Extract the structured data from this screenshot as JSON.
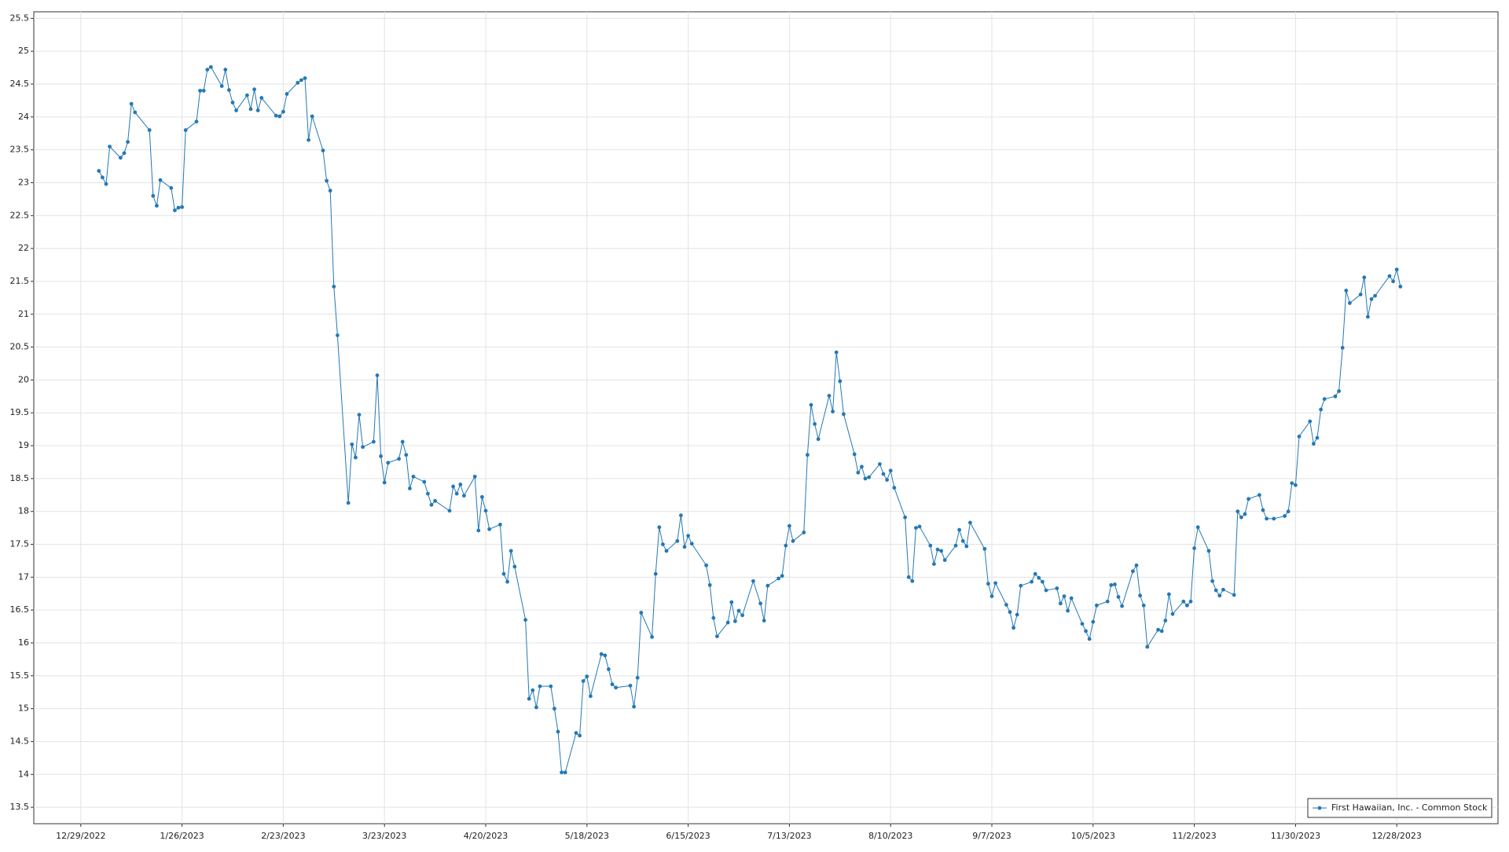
{
  "chart_data": {
    "type": "line",
    "x": [
      "1/3/2023",
      "1/4/2023",
      "1/5/2023",
      "1/6/2023",
      "1/9/2023",
      "1/10/2023",
      "1/11/2023",
      "1/12/2023",
      "1/13/2023",
      "1/17/2023",
      "1/18/2023",
      "1/19/2023",
      "1/20/2023",
      "1/23/2023",
      "1/24/2023",
      "1/25/2023",
      "1/26/2023",
      "1/27/2023",
      "1/30/2023",
      "1/31/2023",
      "2/1/2023",
      "2/2/2023",
      "2/3/2023",
      "2/6/2023",
      "2/7/2023",
      "2/8/2023",
      "2/9/2023",
      "2/10/2023",
      "2/13/2023",
      "2/14/2023",
      "2/15/2023",
      "2/16/2023",
      "2/17/2023",
      "2/21/2023",
      "2/22/2023",
      "2/23/2023",
      "2/24/2023",
      "2/27/2023",
      "2/28/2023",
      "3/1/2023",
      "3/2/2023",
      "3/3/2023",
      "3/6/2023",
      "3/7/2023",
      "3/8/2023",
      "3/9/2023",
      "3/10/2023",
      "3/13/2023",
      "3/14/2023",
      "3/15/2023",
      "3/16/2023",
      "3/17/2023",
      "3/20/2023",
      "3/21/2023",
      "3/22/2023",
      "3/23/2023",
      "3/24/2023",
      "3/27/2023",
      "3/28/2023",
      "3/29/2023",
      "3/30/2023",
      "3/31/2023",
      "4/3/2023",
      "4/4/2023",
      "4/5/2023",
      "4/6/2023",
      "4/10/2023",
      "4/11/2023",
      "4/12/2023",
      "4/13/2023",
      "4/14/2023",
      "4/17/2023",
      "4/18/2023",
      "4/19/2023",
      "4/20/2023",
      "4/21/2023",
      "4/24/2023",
      "4/25/2023",
      "4/26/2023",
      "4/27/2023",
      "4/28/2023",
      "5/1/2023",
      "5/2/2023",
      "5/3/2023",
      "5/4/2023",
      "5/5/2023",
      "5/8/2023",
      "5/9/2023",
      "5/10/2023",
      "5/11/2023",
      "5/12/2023",
      "5/15/2023",
      "5/16/2023",
      "5/17/2023",
      "5/18/2023",
      "5/19/2023",
      "5/22/2023",
      "5/23/2023",
      "5/24/2023",
      "5/25/2023",
      "5/26/2023",
      "5/30/2023",
      "5/31/2023",
      "6/1/2023",
      "6/2/2023",
      "6/5/2023",
      "6/6/2023",
      "6/7/2023",
      "6/8/2023",
      "6/9/2023",
      "6/12/2023",
      "6/13/2023",
      "6/14/2023",
      "6/15/2023",
      "6/16/2023",
      "6/20/2023",
      "6/21/2023",
      "6/22/2023",
      "6/23/2023",
      "6/26/2023",
      "6/27/2023",
      "6/28/2023",
      "6/29/2023",
      "6/30/2023",
      "7/3/2023",
      "7/5/2023",
      "7/6/2023",
      "7/7/2023",
      "7/10/2023",
      "7/11/2023",
      "7/12/2023",
      "7/13/2023",
      "7/14/2023",
      "7/17/2023",
      "7/18/2023",
      "7/19/2023",
      "7/20/2023",
      "7/21/2023",
      "7/24/2023",
      "7/25/2023",
      "7/26/2023",
      "7/27/2023",
      "7/28/2023",
      "7/31/2023",
      "8/1/2023",
      "8/2/2023",
      "8/3/2023",
      "8/4/2023",
      "8/7/2023",
      "8/8/2023",
      "8/9/2023",
      "8/10/2023",
      "8/11/2023",
      "8/14/2023",
      "8/15/2023",
      "8/16/2023",
      "8/17/2023",
      "8/18/2023",
      "8/21/2023",
      "8/22/2023",
      "8/23/2023",
      "8/24/2023",
      "8/25/2023",
      "8/28/2023",
      "8/29/2023",
      "8/30/2023",
      "8/31/2023",
      "9/1/2023",
      "9/5/2023",
      "9/6/2023",
      "9/7/2023",
      "9/8/2023",
      "9/11/2023",
      "9/12/2023",
      "9/13/2023",
      "9/14/2023",
      "9/15/2023",
      "9/18/2023",
      "9/19/2023",
      "9/20/2023",
      "9/21/2023",
      "9/22/2023",
      "9/25/2023",
      "9/26/2023",
      "9/27/2023",
      "9/28/2023",
      "9/29/2023",
      "10/2/2023",
      "10/3/2023",
      "10/4/2023",
      "10/5/2023",
      "10/6/2023",
      "10/9/2023",
      "10/10/2023",
      "10/11/2023",
      "10/12/2023",
      "10/13/2023",
      "10/16/2023",
      "10/17/2023",
      "10/18/2023",
      "10/19/2023",
      "10/20/2023",
      "10/23/2023",
      "10/24/2023",
      "10/25/2023",
      "10/26/2023",
      "10/27/2023",
      "10/30/2023",
      "10/31/2023",
      "11/1/2023",
      "11/2/2023",
      "11/3/2023",
      "11/6/2023",
      "11/7/2023",
      "11/8/2023",
      "11/9/2023",
      "11/10/2023",
      "11/13/2023",
      "11/14/2023",
      "11/15/2023",
      "11/16/2023",
      "11/17/2023",
      "11/20/2023",
      "11/21/2023",
      "11/22/2023",
      "11/24/2023",
      "11/27/2023",
      "11/28/2023",
      "11/29/2023",
      "11/30/2023",
      "12/1/2023",
      "12/4/2023",
      "12/5/2023",
      "12/6/2023",
      "12/7/2023",
      "12/8/2023",
      "12/11/2023",
      "12/12/2023",
      "12/13/2023",
      "12/14/2023",
      "12/15/2023",
      "12/18/2023",
      "12/19/2023",
      "12/20/2023",
      "12/21/2023",
      "12/22/2023",
      "12/26/2023",
      "12/27/2023",
      "12/28/2023",
      "12/29/2023"
    ],
    "series": [
      {
        "name": "First Hawaiian, Inc. - Common Stock",
        "color": "#2478b5",
        "values": [
          23.18,
          23.08,
          22.98,
          23.55,
          23.38,
          23.45,
          23.62,
          24.2,
          24.07,
          23.8,
          22.8,
          22.65,
          23.04,
          22.92,
          22.58,
          22.62,
          22.63,
          23.8,
          23.93,
          24.4,
          24.4,
          24.72,
          24.76,
          24.47,
          24.72,
          24.41,
          24.22,
          24.1,
          24.33,
          24.12,
          24.42,
          24.1,
          24.29,
          24.02,
          24.01,
          24.08,
          24.35,
          24.52,
          24.56,
          24.59,
          23.65,
          24.01,
          23.49,
          23.03,
          22.88,
          21.42,
          20.68,
          18.13,
          19.02,
          18.82,
          19.47,
          18.98,
          19.06,
          20.07,
          18.84,
          18.44,
          18.74,
          18.8,
          19.06,
          18.86,
          18.35,
          18.53,
          18.45,
          18.27,
          18.1,
          18.16,
          18.01,
          18.38,
          18.27,
          18.41,
          18.24,
          18.53,
          17.71,
          18.22,
          18.01,
          17.73,
          17.8,
          17.05,
          16.93,
          17.4,
          17.16,
          16.35,
          15.15,
          15.28,
          15.02,
          15.34,
          15.34,
          15.0,
          14.65,
          14.03,
          14.03,
          14.63,
          14.59,
          15.42,
          15.49,
          15.19,
          15.83,
          15.81,
          15.6,
          15.37,
          15.32,
          15.35,
          15.03,
          15.47,
          16.46,
          16.09,
          17.05,
          17.76,
          17.5,
          17.4,
          17.55,
          17.94,
          17.46,
          17.63,
          17.51,
          17.18,
          16.88,
          16.38,
          16.1,
          16.31,
          16.62,
          16.33,
          16.49,
          16.42,
          16.94,
          16.6,
          16.34,
          16.87,
          16.98,
          17.02,
          17.48,
          17.78,
          17.55,
          17.68,
          18.86,
          19.62,
          19.33,
          19.1,
          19.76,
          19.52,
          20.42,
          19.98,
          19.48,
          18.87,
          18.59,
          18.68,
          18.5,
          18.52,
          18.72,
          18.57,
          18.48,
          18.62,
          18.36,
          17.91,
          17.0,
          16.94,
          17.75,
          17.77,
          17.48,
          17.2,
          17.42,
          17.4,
          17.26,
          17.48,
          17.72,
          17.55,
          17.47,
          17.83,
          17.43,
          16.9,
          16.71,
          16.91,
          16.58,
          16.47,
          16.23,
          16.43,
          16.87,
          16.93,
          17.05,
          16.99,
          16.93,
          16.8,
          16.83,
          16.6,
          16.71,
          16.49,
          16.68,
          16.29,
          16.18,
          16.06,
          16.32,
          16.57,
          16.63,
          16.88,
          16.89,
          16.7,
          16.56,
          17.09,
          17.18,
          16.72,
          16.57,
          15.94,
          16.2,
          16.18,
          16.34,
          16.74,
          16.44,
          16.63,
          16.57,
          16.63,
          17.44,
          17.76,
          17.4,
          16.94,
          16.8,
          16.72,
          16.81,
          16.73,
          18.0,
          17.91,
          17.96,
          18.19,
          18.25,
          18.02,
          17.89,
          17.89,
          17.93,
          18.0,
          18.43,
          18.4,
          19.14,
          19.37,
          19.03,
          19.12,
          19.55,
          19.71,
          19.75,
          19.83,
          20.49,
          21.36,
          21.17,
          21.3,
          21.56,
          20.96,
          21.23,
          21.28,
          21.58,
          21.5,
          21.68,
          21.42
        ]
      }
    ],
    "xlim": [
      "12/16/2022",
      "1/25/2024"
    ],
    "xticks": [
      "12/29/2022",
      "1/26/2023",
      "2/23/2023",
      "3/23/2023",
      "4/20/2023",
      "5/18/2023",
      "6/15/2023",
      "7/13/2023",
      "8/10/2023",
      "9/7/2023",
      "10/5/2023",
      "11/2/2023",
      "11/30/2023",
      "12/28/2023"
    ],
    "ylim": [
      13.25,
      25.6
    ],
    "yticks": [
      13.5,
      14,
      14.5,
      15,
      15.5,
      16,
      16.5,
      17,
      17.5,
      18,
      18.5,
      19,
      19.5,
      20,
      20.5,
      21,
      21.5,
      22,
      22.5,
      23,
      23.5,
      24,
      24.5,
      25,
      25.5
    ],
    "grid": true,
    "legend": "lower right"
  }
}
